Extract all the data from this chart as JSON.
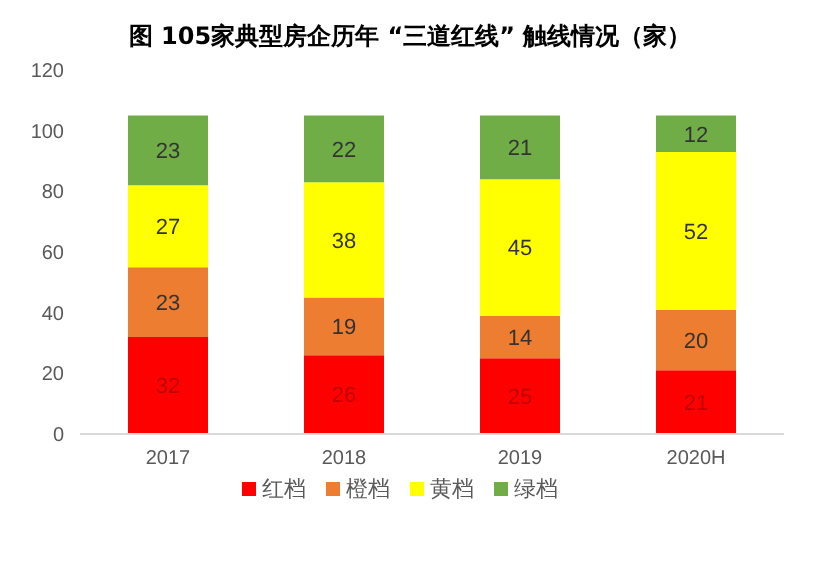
{
  "chart_data": {
    "type": "bar",
    "title": "图 105家典型房企历年 “三道红线” 触线情况（家）",
    "categories": [
      "2017",
      "2018",
      "2019",
      "2020H"
    ],
    "stacked": true,
    "data_labels": true,
    "legend": "bottom",
    "grid": false,
    "ylim": [
      0,
      120
    ],
    "yticks": [
      0,
      20,
      40,
      60,
      80,
      100,
      120
    ],
    "series": [
      {
        "name": "红档",
        "color": "#ff0000",
        "values": [
          32,
          26,
          25,
          21
        ]
      },
      {
        "name": "橙档",
        "color": "#ed7d31",
        "values": [
          23,
          19,
          14,
          20
        ]
      },
      {
        "name": "黄档",
        "color": "#ffff00",
        "values": [
          27,
          38,
          45,
          52
        ]
      },
      {
        "name": "绿档",
        "color": "#70ad47",
        "values": [
          23,
          22,
          21,
          12
        ]
      }
    ]
  }
}
